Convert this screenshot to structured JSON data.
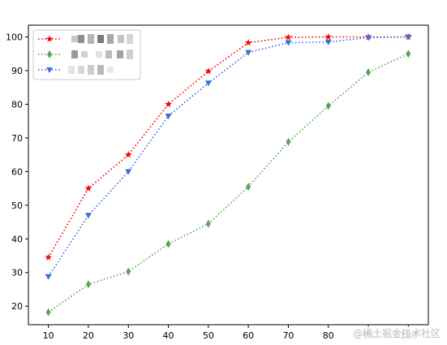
{
  "chart_data": {
    "type": "line",
    "title": "",
    "xlabel": "",
    "ylabel": "",
    "x": [
      10,
      20,
      30,
      40,
      50,
      60,
      70,
      80,
      90,
      100
    ],
    "xlim": [
      5,
      105
    ],
    "ylim": [
      14.5,
      103.5
    ],
    "yticks": [
      20,
      30,
      40,
      50,
      60,
      70,
      80,
      90,
      100
    ],
    "grid": false,
    "legend_position": "top-left",
    "series": [
      {
        "legend_label": "",
        "color": "#ff0000",
        "marker": "star",
        "line_style": "dotted",
        "values": [
          34.5,
          55.0,
          65.0,
          80.0,
          89.8,
          98.3,
          99.9,
          100.0,
          100.0,
          100.0
        ]
      },
      {
        "legend_label": "",
        "color": "#5aa55a",
        "marker": "thin-diamond",
        "line_style": "dotted",
        "values": [
          18.2,
          26.5,
          30.3,
          38.5,
          44.5,
          55.5,
          68.8,
          79.5,
          89.5,
          95.0
        ]
      },
      {
        "legend_label": "",
        "color": "#3a6fd8",
        "marker": "triangle-down",
        "line_style": "dotted",
        "values": [
          28.8,
          47.0,
          60.0,
          76.5,
          86.3,
          95.4,
          98.3,
          98.5,
          99.8,
          100.0
        ]
      }
    ]
  },
  "watermark": "@稀土掘金技术社区"
}
